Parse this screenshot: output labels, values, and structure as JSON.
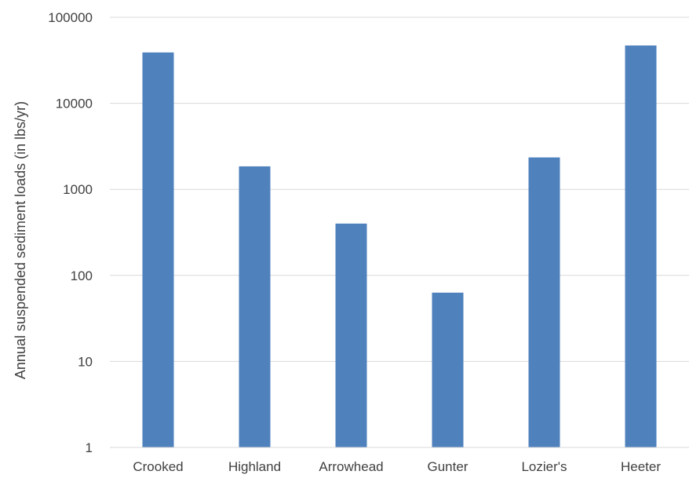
{
  "chart_data": {
    "type": "bar",
    "title": "",
    "xlabel": "",
    "ylabel": "Annual suspended sediment loads (in lbs/yr)",
    "yscale": "log",
    "ylim": [
      1,
      100000
    ],
    "yticks": [
      1,
      10,
      100,
      1000,
      10000,
      100000
    ],
    "ytick_labels": [
      "1",
      "10",
      "100",
      "1000",
      "10000",
      "100000"
    ],
    "grid": true,
    "legend": "none",
    "categories": [
      "Crooked",
      "Highland",
      "Arrowhead",
      "Gunter",
      "Lozier's",
      "Heeter"
    ],
    "series": [
      {
        "values": [
          39000,
          1850,
          400,
          63,
          2350,
          47000
        ],
        "color": "#4f81bd"
      }
    ],
    "colors": {
      "bar": "#4f81bd",
      "grid": "#d9d9d9",
      "text": "#404040"
    }
  }
}
